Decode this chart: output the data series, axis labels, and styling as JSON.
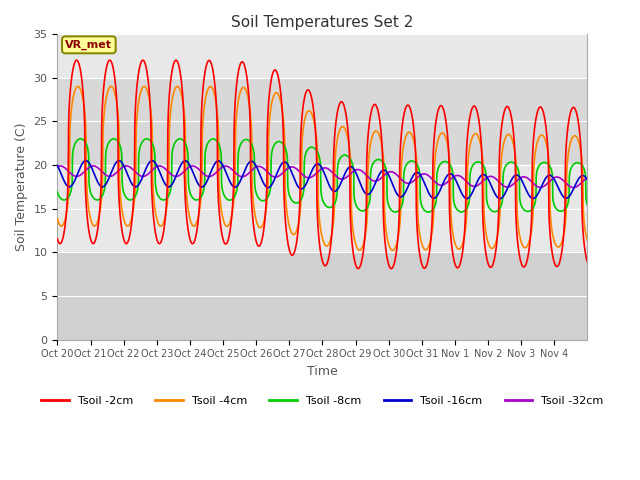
{
  "title": "Soil Temperatures Set 2",
  "xlabel": "Time",
  "ylabel": "Soil Temperature (C)",
  "ylim": [
    0,
    35
  ],
  "yticks": [
    0,
    5,
    10,
    15,
    20,
    25,
    30,
    35
  ],
  "annotation": "VR_met",
  "line_colors": {
    "2cm": "#ff0000",
    "4cm": "#ff8800",
    "8cm": "#00cc00",
    "16cm": "#0000cc",
    "32cm": "#aa00cc"
  },
  "legend_labels": [
    "Tsoil -2cm",
    "Tsoil -4cm",
    "Tsoil -8cm",
    "Tsoil -16cm",
    "Tsoil -32cm"
  ],
  "x_tick_labels": [
    "Oct 20",
    "Oct 21",
    "Oct 22",
    "Oct 23",
    "Oct 24",
    "Oct 25",
    "Oct 26",
    "Oct 27",
    "Oct 28",
    "Oct 29",
    "Oct 30",
    "Oct 31",
    "Nov 1",
    "Nov 2",
    "Nov 3",
    "Nov 4"
  ],
  "band_light": "#dcdcdc",
  "band_dark": "#e8e8e8",
  "plot_bg": "#e8e8e8"
}
